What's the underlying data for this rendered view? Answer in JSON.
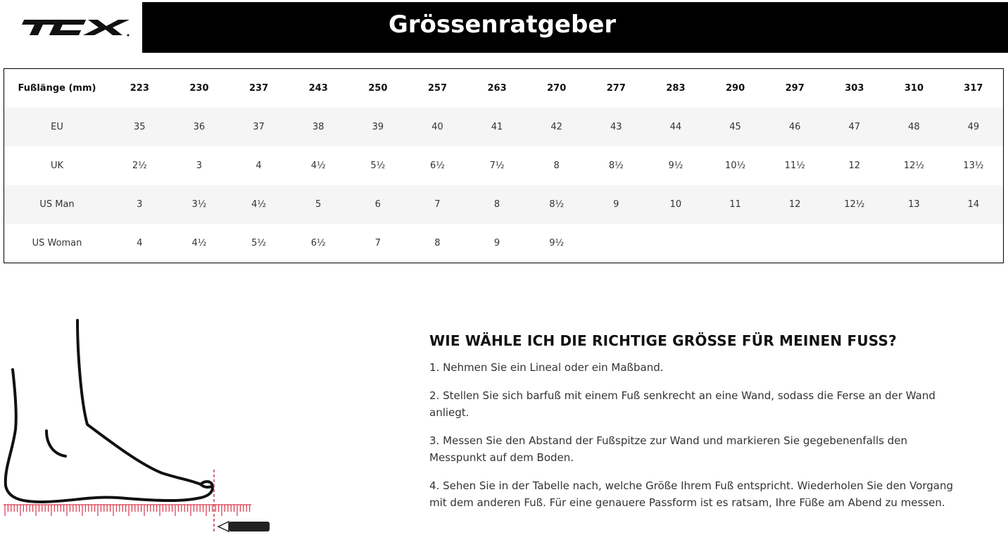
{
  "logo": "TCX",
  "title": "Grössenratgeber",
  "table": {
    "header": {
      "label": "Fußlänge (mm)",
      "values": [
        "223",
        "230",
        "237",
        "243",
        "250",
        "257",
        "263",
        "270",
        "277",
        "283",
        "290",
        "297",
        "303",
        "310",
        "317"
      ]
    },
    "rows": [
      {
        "label": "EU",
        "values": [
          "35",
          "36",
          "37",
          "38",
          "39",
          "40",
          "41",
          "42",
          "43",
          "44",
          "45",
          "46",
          "47",
          "48",
          "49"
        ]
      },
      {
        "label": "UK",
        "values": [
          "2½",
          "3",
          "4",
          "4½",
          "5½",
          "6½",
          "7½",
          "8",
          "8½",
          "9½",
          "10½",
          "11½",
          "12",
          "12½",
          "13½"
        ]
      },
      {
        "label": "US Man",
        "values": [
          "3",
          "3½",
          "4½",
          "5",
          "6",
          "7",
          "8",
          "8½",
          "9",
          "10",
          "11",
          "12",
          "12½",
          "13",
          "14"
        ]
      },
      {
        "label": "US Woman",
        "values": [
          "4",
          "4½",
          "5½",
          "6½",
          "7",
          "8",
          "9",
          "9½",
          "",
          "",
          "",
          "",
          "",
          "",
          ""
        ]
      }
    ]
  },
  "info": {
    "heading": "WIE WÄHLE ICH DIE RICHTIGE GRÖSSE FÜR MEINEN FUSS?",
    "steps": [
      "1. Nehmen Sie ein Lineal oder ein Maßband.",
      "2. Stellen Sie sich barfuß mit einem Fuß senkrecht an eine Wand, sodass die Ferse an der Wand anliegt.",
      "3. Messen Sie den Abstand der Fußspitze zur Wand und markieren Sie gegebenenfalls den Messpunkt auf dem Boden.",
      "4. Sehen Sie in der Tabelle nach, welche Größe Ihrem Fuß entspricht. Wiederholen Sie den Vorgang mit dem anderen Fuß. Für eine genauere Passform ist es ratsam, Ihre Füße am Abend zu messen."
    ]
  },
  "colors": {
    "ruler": "#d9354a",
    "header_bg": "#000000",
    "row_alt": "#f5f5f5"
  }
}
